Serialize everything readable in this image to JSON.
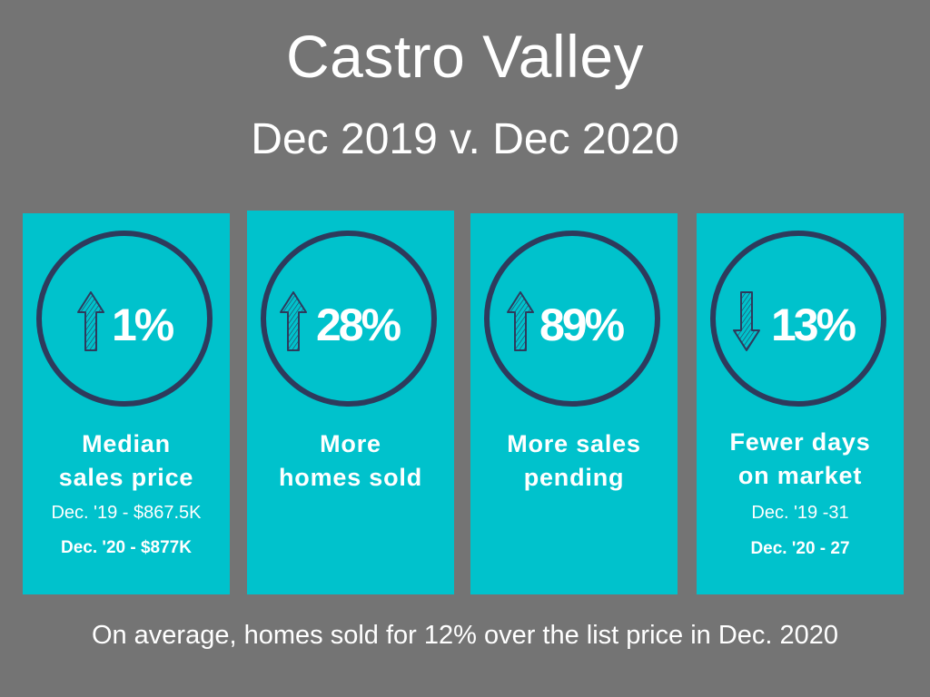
{
  "header": {
    "title": "Castro Valley",
    "subtitle": "Dec 2019 v. Dec 2020"
  },
  "colors": {
    "background": "#747474",
    "card": "#00c2cc",
    "ring": "#2e3a5c",
    "text": "#ffffff"
  },
  "cards": [
    {
      "direction": "up",
      "icon": "arrow-up-icon",
      "percent": "1%",
      "label_line1": "Median",
      "label_line2": "sales price",
      "detail_line1": "Dec. '19 - $867.5K",
      "detail_line2": "Dec. '20 - $877K"
    },
    {
      "direction": "up",
      "icon": "arrow-up-icon",
      "percent": "28%",
      "label_line1": "More",
      "label_line2": "homes sold"
    },
    {
      "direction": "up",
      "icon": "arrow-up-icon",
      "percent": "89%",
      "label_line1": "More sales",
      "label_line2": "pending"
    },
    {
      "direction": "down",
      "icon": "arrow-down-icon",
      "percent": "13%",
      "label_line1": "Fewer days",
      "label_line2": "on market",
      "detail_line1": "Dec. '19 -31",
      "detail_line2": "Dec. '20 - 27"
    }
  ],
  "footer": {
    "text": "On average, homes sold for 12% over the list price in Dec. 2020"
  }
}
